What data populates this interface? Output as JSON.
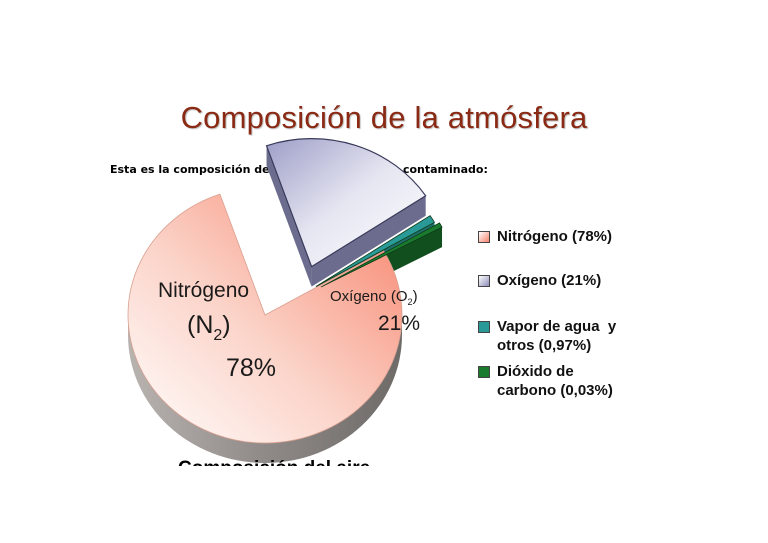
{
  "chart_data": {
    "type": "pie",
    "title": "Composición de la atmósfera",
    "subtitle": "Esta es la composición de un aire \"normal\", no contaminado:",
    "slices": [
      {
        "label": "Nitrógeno (78%)",
        "value": 78,
        "color": "#f7826a",
        "annotation": {
          "name": "Nitrógeno",
          "formula": "N",
          "sub": "2",
          "percent": "78%"
        }
      },
      {
        "label": "Oxígeno (21%)",
        "value": 21,
        "color": "#c4c4e0",
        "annotation": {
          "name": "Oxígeno (O",
          "sub": "2",
          "close": ")",
          "percent": "21%"
        }
      },
      {
        "label": "Vapor de agua  y otros (0,97%)",
        "value": 0.97,
        "color": "#2a9a98"
      },
      {
        "label": "Dióxido de carbono (0,03%)",
        "value": 0.03,
        "color": "#1a7a2e"
      }
    ],
    "legend_position": "right"
  },
  "legend_lines": [
    [
      "Nitrógeno (78%)"
    ],
    [
      "Oxígeno (21%)"
    ],
    [
      "Vapor de agua  y",
      "otros (0,97%)"
    ],
    [
      "Dióxido de",
      "carbono (0,03%)"
    ]
  ],
  "cut_caption": "Composición del aire"
}
